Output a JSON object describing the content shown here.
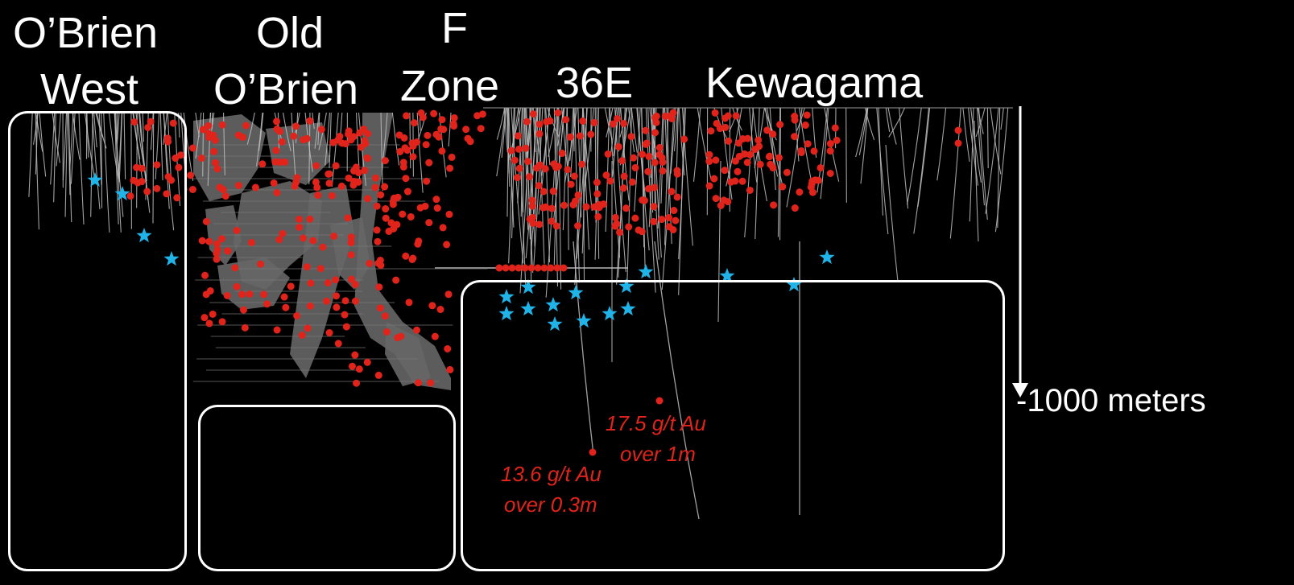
{
  "zones": [
    {
      "line1": "O’Brien",
      "line2": "West"
    },
    {
      "line1": "Old",
      "line2": "O’Brien"
    },
    {
      "line1": "F",
      "line2": "Zone"
    },
    {
      "line1": "",
      "line2": "36E"
    },
    {
      "line1": "",
      "line2": "Kewagama"
    }
  ],
  "depth_label": "-1000 meters",
  "intercepts": [
    {
      "line1": "17.5 g/t Au",
      "line2": "over 1m"
    },
    {
      "line1": "13.6 g/t Au",
      "line2": "over 0.3m"
    }
  ],
  "colors": {
    "background": "#000000",
    "text": "#ffffff",
    "drill_trace": "#bdbdbd",
    "workings": "#666666",
    "assay_dot": "#e0241b",
    "target_star": "#1fb3e8",
    "box_outline": "#ffffff"
  },
  "icons": {
    "target": "star-icon",
    "assay": "red-dot-icon",
    "depth_arrow": "down-arrow-icon"
  }
}
